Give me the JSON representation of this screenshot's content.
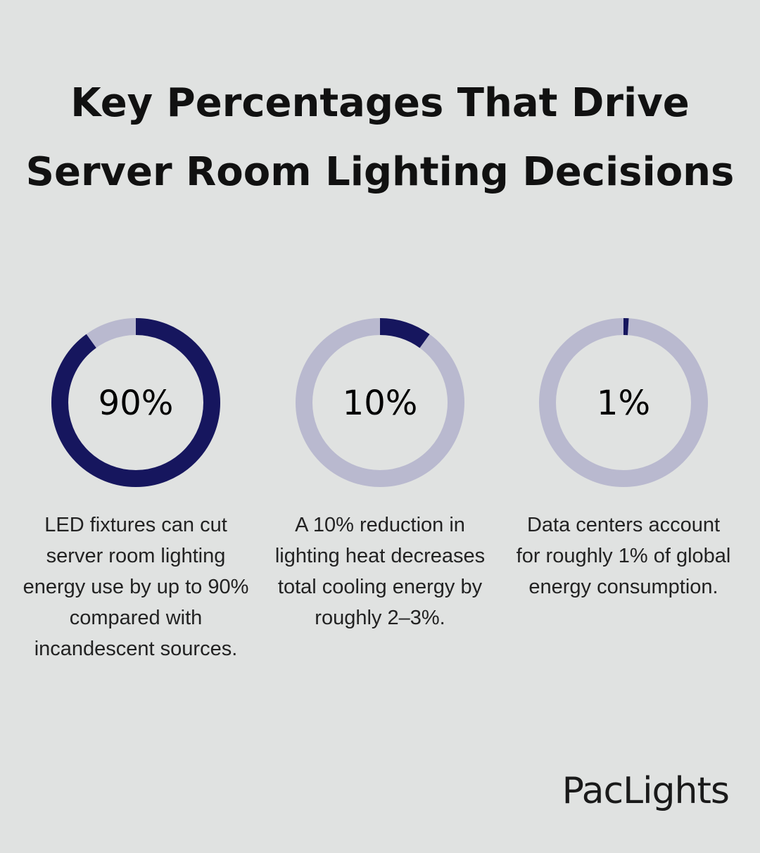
{
  "title": "Key Percentages That Drive Server Room Lighting Decisions",
  "colors": {
    "background": "#e0e2e1",
    "filled": "#16165e",
    "remaining": "#b9b9cf"
  },
  "chart_data": [
    {
      "type": "pie",
      "style": "donut",
      "value": 90,
      "label": "90%",
      "description": "LED fixtures can cut server room lighting energy use by up to 90% compared with incandescent sources."
    },
    {
      "type": "pie",
      "style": "donut",
      "value": 10,
      "label": "10%",
      "description": "A 10% reduction in lighting heat decreases total cooling energy by roughly 2–3%."
    },
    {
      "type": "pie",
      "style": "donut",
      "value": 1,
      "label": "1%",
      "description": "Data centers account for roughly 1% of global energy consumption."
    }
  ],
  "logo": "PacLights"
}
